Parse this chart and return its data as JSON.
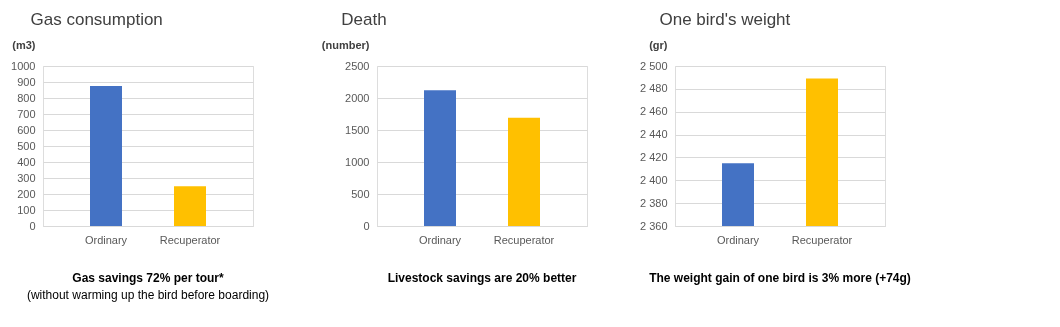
{
  "chart_data": [
    {
      "type": "bar",
      "title": "Gas consumption",
      "ylabel": "(m3)",
      "categories": [
        "Ordinary",
        "Recuperator"
      ],
      "values": [
        875,
        248
      ],
      "colors": [
        "#4472c4",
        "#ffc000"
      ],
      "ylim": [
        0,
        1000
      ],
      "yticks": [
        0,
        100,
        200,
        300,
        400,
        500,
        600,
        700,
        800,
        900,
        1000
      ],
      "grid": "y",
      "annotations": [
        "Gas savings 72% per tour*",
        "(without warming up the bird before boarding)"
      ]
    },
    {
      "type": "bar",
      "title": "Death",
      "ylabel": "(number)",
      "categories": [
        "Ordinary",
        "Recuperator"
      ],
      "values": [
        2120,
        1690
      ],
      "colors": [
        "#4472c4",
        "#ffc000"
      ],
      "ylim": [
        0,
        2500
      ],
      "yticks": [
        0,
        500,
        1000,
        1500,
        2000,
        2500
      ],
      "grid": "y",
      "annotations": [
        "Livestock savings are 20% better"
      ]
    },
    {
      "type": "bar",
      "title": "One bird's weight",
      "ylabel": "(gr)",
      "categories": [
        "Ordinary",
        "Recuperator"
      ],
      "values": [
        2415,
        2489
      ],
      "colors": [
        "#4472c4",
        "#ffc000"
      ],
      "ylim": [
        2360,
        2500
      ],
      "yticks": [
        {
          "value": 2360,
          "label": "2 360"
        },
        {
          "value": 2380,
          "label": "2 380"
        },
        {
          "value": 2400,
          "label": "2 400"
        },
        {
          "value": 2420,
          "label": "2 420"
        },
        {
          "value": 2440,
          "label": "2 440"
        },
        {
          "value": 2460,
          "label": "2 460"
        },
        {
          "value": 2480,
          "label": "2 480"
        },
        {
          "value": 2500,
          "label": "2 500"
        }
      ],
      "grid": "y",
      "annotations": [
        "The weight gain of one bird is 3% more (+74g)"
      ]
    }
  ]
}
